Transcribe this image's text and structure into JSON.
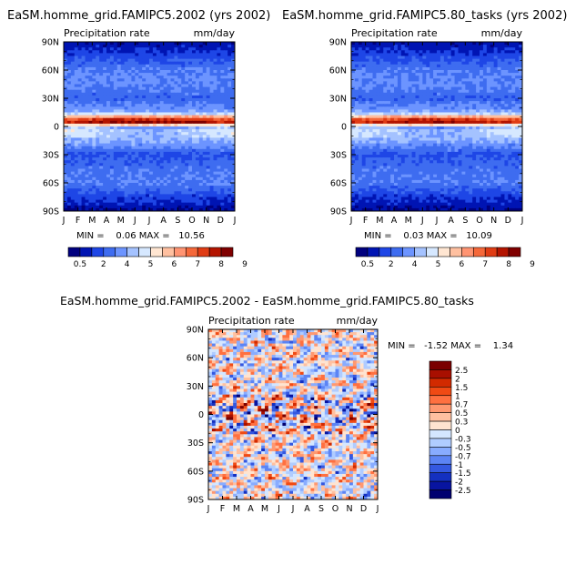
{
  "chart_data": [
    {
      "type": "heatmap",
      "title": "EaSM.homme_grid.FAMIPC5.2002 (yrs 2002)",
      "subtitle_left": "Precipitation rate",
      "subtitle_right": "mm/day",
      "x_tick_labels": [
        "J",
        "F",
        "M",
        "A",
        "M",
        "J",
        "J",
        "A",
        "S",
        "O",
        "N",
        "D",
        "J"
      ],
      "y_tick_labels": [
        "90N",
        "60N",
        "30N",
        "0",
        "30S",
        "60S",
        "90S"
      ],
      "y_range": [
        -90,
        90
      ],
      "stats": "MIN =    0.06 MAX =   10.56",
      "colorbar_labels": [
        "0.5",
        "2",
        "4",
        "5",
        "6",
        "7",
        "8",
        "9"
      ],
      "colorbar_colors": [
        "#00007f",
        "#0014b3",
        "#1e46e6",
        "#3e6cf0",
        "#6c94ff",
        "#a4c2ff",
        "#d6e8ff",
        "#ffe6d2",
        "#ffc0a0",
        "#ff9472",
        "#f5683a",
        "#e03c14",
        "#b41400",
        "#800000"
      ],
      "profile": {
        "lat": [
          -90,
          -75,
          -60,
          -45,
          -30,
          -20,
          -10,
          -5,
          0,
          5,
          8,
          15,
          30,
          45,
          60,
          75,
          90
        ],
        "value": [
          0.3,
          1.5,
          2.8,
          2.5,
          1.8,
          3.2,
          4.2,
          4.5,
          3.5,
          10,
          8,
          3.6,
          2.2,
          3.0,
          2.8,
          1.6,
          0.5
        ]
      }
    },
    {
      "type": "heatmap",
      "title": "EaSM.homme_grid.FAMIPC5.80_tasks (yrs 2002)",
      "subtitle_left": "Precipitation rate",
      "subtitle_right": "mm/day",
      "x_tick_labels": [
        "J",
        "F",
        "M",
        "A",
        "M",
        "J",
        "J",
        "A",
        "S",
        "O",
        "N",
        "D",
        "J"
      ],
      "y_tick_labels": [
        "90N",
        "60N",
        "30N",
        "0",
        "30S",
        "60S",
        "90S"
      ],
      "y_range": [
        -90,
        90
      ],
      "stats": "MIN =    0.03 MAX =   10.09",
      "colorbar_labels": [
        "0.5",
        "2",
        "4",
        "5",
        "6",
        "7",
        "8",
        "9"
      ],
      "colorbar_colors": [
        "#00007f",
        "#0014b3",
        "#1e46e6",
        "#3e6cf0",
        "#6c94ff",
        "#a4c2ff",
        "#d6e8ff",
        "#ffe6d2",
        "#ffc0a0",
        "#ff9472",
        "#f5683a",
        "#e03c14",
        "#b41400",
        "#800000"
      ],
      "profile": {
        "lat": [
          -90,
          -75,
          -60,
          -45,
          -30,
          -20,
          -10,
          -5,
          0,
          5,
          8,
          15,
          30,
          45,
          60,
          75,
          90
        ],
        "value": [
          0.3,
          1.4,
          2.7,
          2.5,
          1.8,
          3.1,
          4.1,
          4.4,
          3.4,
          9.6,
          7.8,
          3.5,
          2.2,
          3.0,
          2.7,
          1.6,
          0.5
        ]
      }
    },
    {
      "type": "heatmap",
      "title": "EaSM.homme_grid.FAMIPC5.2002 - EaSM.homme_grid.FAMIPC5.80_tasks",
      "subtitle_left": "Precipitation rate",
      "subtitle_right": "mm/day",
      "x_tick_labels": [
        "J",
        "F",
        "M",
        "A",
        "M",
        "J",
        "J",
        "A",
        "S",
        "O",
        "N",
        "D",
        "J"
      ],
      "y_tick_labels": [
        "90N",
        "60N",
        "30N",
        "0",
        "30S",
        "60S",
        "90S"
      ],
      "y_range": [
        -90,
        90
      ],
      "stats": "MIN =   -1.52 MAX =    1.34",
      "colorbar_labels": [
        "2.5",
        "2",
        "1.5",
        "1",
        "0.7",
        "0.5",
        "0.3",
        "0",
        "-0.3",
        "-0.5",
        "-0.7",
        "-1",
        "-1.5",
        "-2",
        "-2.5"
      ],
      "colorbar_colors": [
        "#7a0000",
        "#a80f00",
        "#d22a00",
        "#f04a14",
        "#ff7040",
        "#ff9870",
        "#ffc0a0",
        "#ffe4d0",
        "#d4e6ff",
        "#b0ccff",
        "#88acff",
        "#5c84f4",
        "#3458e0",
        "#1430c0",
        "#0814a0",
        "#000070"
      ]
    }
  ]
}
